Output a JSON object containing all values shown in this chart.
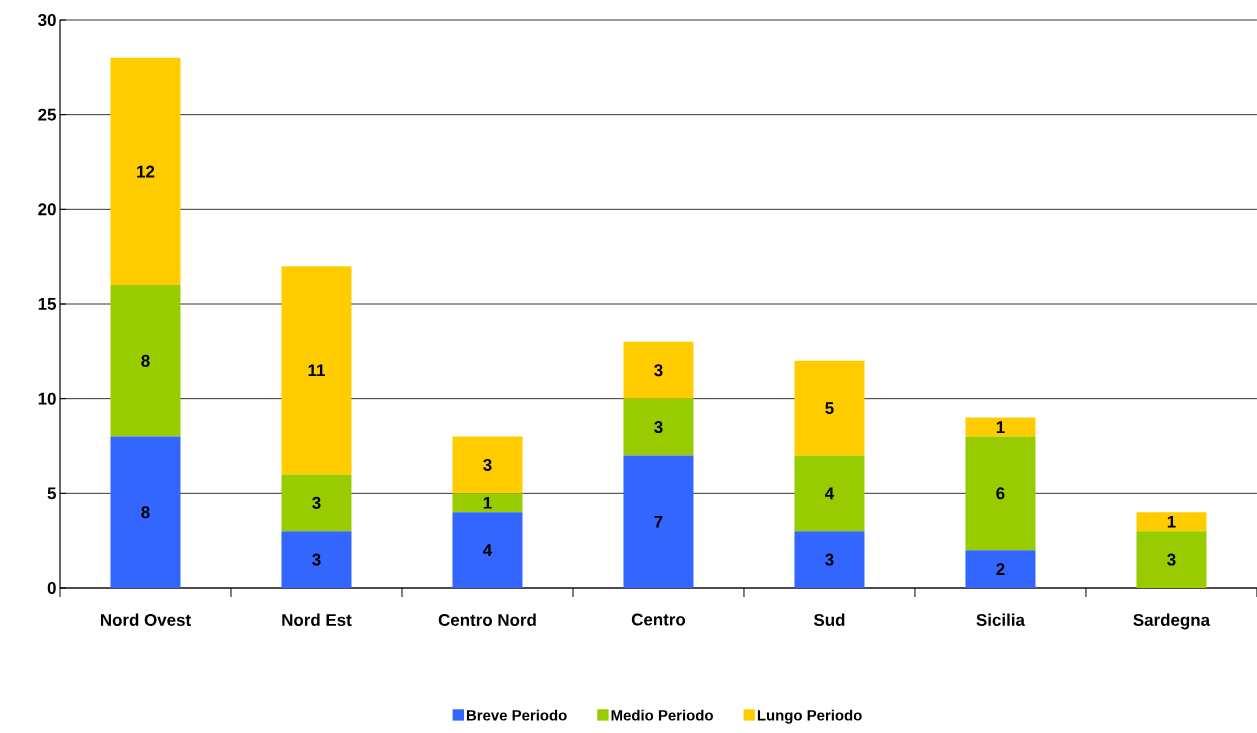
{
  "chart_data": {
    "type": "bar",
    "stacked": true,
    "categories": [
      "Nord Ovest",
      "Nord Est",
      "Centro Nord",
      "Centro",
      "Sud",
      "Sicilia",
      "Sardegna"
    ],
    "series": [
      {
        "name": "Breve Periodo",
        "color": "#3366ff",
        "values": [
          8,
          3,
          4,
          7,
          3,
          2,
          0
        ],
        "value_labels": [
          "8",
          "3",
          "4",
          "7",
          "3",
          "2",
          null
        ]
      },
      {
        "name": "Medio Periodo",
        "color": "#99cc00",
        "values": [
          8,
          3,
          1,
          3,
          4,
          6,
          3
        ],
        "value_labels": [
          "8",
          "3",
          "1",
          "3",
          "4",
          "6",
          "3"
        ]
      },
      {
        "name": "Lungo Periodo",
        "color": "#ffcc00",
        "values": [
          12,
          11,
          3,
          3,
          5,
          1,
          1
        ],
        "value_labels": [
          "12",
          "11",
          "3",
          "3",
          "5",
          "1",
          "1"
        ]
      }
    ],
    "ylim": [
      0,
      30
    ],
    "yticks": [
      0,
      5,
      10,
      15,
      20,
      25,
      30
    ],
    "grid": "y",
    "legend": "bottom"
  }
}
